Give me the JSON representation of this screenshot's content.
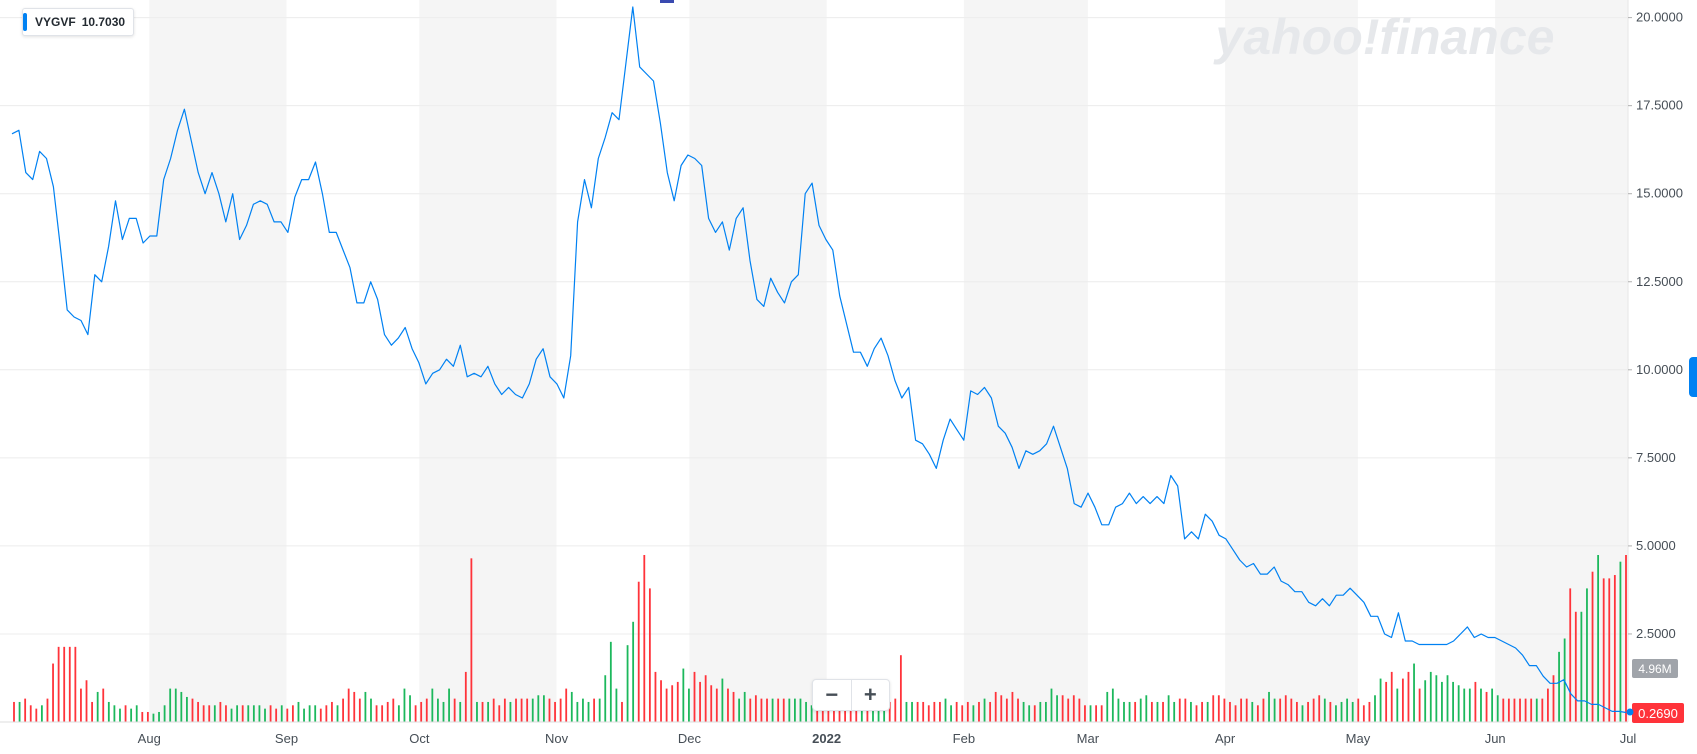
{
  "symbol": {
    "ticker": "VYGVF",
    "price": "10.7030"
  },
  "watermark": "yahoo!finance",
  "volume_label": "4.96M",
  "last_price_label": "0.2690",
  "zoom": {
    "minus": "−",
    "plus": "+"
  },
  "colors": {
    "line": "#0081f2",
    "volume_up": "#1cb85c",
    "volume_down": "#ff333a",
    "band": "#f5f5f5",
    "price_badge": "#ff333a",
    "volume_badge": "#a0a4aa"
  },
  "chart_data": {
    "type": "line",
    "title": "",
    "xlabel": "",
    "ylabel": "",
    "ylim": [
      0,
      20.5
    ],
    "y_ticks": [
      "20.0000",
      "17.5000",
      "15.0000",
      "12.5000",
      "10.0000",
      "7.5000",
      "5.0000",
      "2.5000"
    ],
    "y_tick_values": [
      20,
      17.5,
      15,
      12.5,
      10,
      7.5,
      5,
      2.5
    ],
    "x_ticks": [
      "Aug",
      "Sep",
      "Oct",
      "Nov",
      "Dec",
      "2022",
      "Feb",
      "Mar",
      "Apr",
      "May",
      "Jun",
      "Jul"
    ],
    "x_range": [
      "2021-07-01",
      "2022-07-01"
    ],
    "x_tick_dates": [
      "2021-08-01",
      "2021-09-01",
      "2021-10-01",
      "2021-11-01",
      "2021-12-01",
      "2022-01-01",
      "2022-02-01",
      "2022-03-01",
      "2022-04-01",
      "2022-05-01",
      "2022-06-01",
      "2022-07-01"
    ],
    "series": [
      {
        "values": [
          16.7,
          16.8,
          15.6,
          15.4,
          16.2,
          16.0,
          15.2,
          13.5,
          11.7,
          11.5,
          11.4,
          11.0,
          12.7,
          12.5,
          13.5,
          14.8,
          13.7,
          14.3,
          14.3,
          13.6,
          13.8,
          13.8,
          15.4,
          16.0,
          16.8,
          17.4,
          16.5,
          15.6,
          15.0,
          15.6,
          15.0,
          14.2,
          15.0,
          13.7,
          14.1,
          14.7,
          14.8,
          14.7,
          14.2,
          14.2,
          13.9,
          14.9,
          15.4,
          15.4,
          15.9,
          15.0,
          13.9,
          13.9,
          13.4,
          12.9,
          11.9,
          11.9,
          12.5,
          12.0,
          11.0,
          10.7,
          10.9,
          11.2,
          10.6,
          10.2,
          9.6,
          9.9,
          10.0,
          10.3,
          10.1,
          10.7,
          9.8,
          9.9,
          9.8,
          10.1,
          9.6,
          9.3,
          9.5,
          9.3,
          9.2,
          9.6,
          10.3,
          10.6,
          9.8,
          9.6,
          9.2,
          10.4,
          14.2,
          15.4,
          14.6,
          16.0,
          16.6,
          17.3,
          17.1,
          18.7,
          20.3,
          18.6,
          18.4,
          18.2,
          17.0,
          15.6,
          14.8,
          15.8,
          16.1,
          16.0,
          15.8,
          14.3,
          13.9,
          14.2,
          13.4,
          14.3,
          14.6,
          13.1,
          12.0,
          11.8,
          12.6,
          12.2,
          11.9,
          12.5,
          12.7,
          15.0,
          15.3,
          14.1,
          13.7,
          13.4,
          12.1,
          11.3,
          10.5,
          10.5,
          10.1,
          10.6,
          10.9,
          10.4,
          9.7,
          9.2,
          9.5,
          8.0,
          7.9,
          7.6,
          7.2,
          8.0,
          8.6,
          8.3,
          8.0,
          9.4,
          9.3,
          9.5,
          9.2,
          8.4,
          8.2,
          7.8,
          7.2,
          7.7,
          7.6,
          7.7,
          7.9,
          8.4,
          7.8,
          7.2,
          6.2,
          6.1,
          6.5,
          6.1,
          5.6,
          5.6,
          6.1,
          6.2,
          6.5,
          6.2,
          6.4,
          6.2,
          6.4,
          6.2,
          7.0,
          6.7,
          5.2,
          5.4,
          5.2,
          5.9,
          5.7,
          5.3,
          5.2,
          4.9,
          4.6,
          4.4,
          4.5,
          4.2,
          4.2,
          4.4,
          4.0,
          3.9,
          3.7,
          3.7,
          3.4,
          3.3,
          3.5,
          3.3,
          3.6,
          3.6,
          3.8,
          3.6,
          3.4,
          3.0,
          3.0,
          2.5,
          2.4,
          3.1,
          2.3,
          2.3,
          2.2,
          2.2,
          2.2,
          2.2,
          2.2,
          2.3,
          2.5,
          2.7,
          2.4,
          2.5,
          2.4,
          2.4,
          2.3,
          2.2,
          2.1,
          1.9,
          1.6,
          1.6,
          1.3,
          1.1,
          1.1,
          1.2,
          0.8,
          0.6,
          0.6,
          0.5,
          0.5,
          0.4,
          0.3,
          0.3,
          0.27
        ]
      }
    ],
    "volume": {
      "values": [
        0.12,
        0.12,
        0.14,
        0.1,
        0.08,
        0.1,
        0.14,
        0.35,
        0.45,
        0.45,
        0.45,
        0.45,
        0.2,
        0.25,
        0.12,
        0.18,
        0.2,
        0.12,
        0.1,
        0.08,
        0.1,
        0.08,
        0.1,
        0.06,
        0.06,
        0.05,
        0.06,
        0.1,
        0.2,
        0.2,
        0.18,
        0.15,
        0.14,
        0.12,
        0.1,
        0.1,
        0.1,
        0.12,
        0.1,
        0.08,
        0.1,
        0.1,
        0.1,
        0.1,
        0.1,
        0.08,
        0.1,
        0.08,
        0.1,
        0.08,
        0.1,
        0.12,
        0.08,
        0.1,
        0.1,
        0.08,
        0.1,
        0.12,
        0.1,
        0.14,
        0.2,
        0.18,
        0.14,
        0.18,
        0.14,
        0.1,
        0.1,
        0.12,
        0.14,
        0.1,
        0.2,
        0.16,
        0.1,
        0.12,
        0.14,
        0.2,
        0.14,
        0.12,
        0.2,
        0.14,
        0.12,
        0.3,
        0.98,
        0.12,
        0.12,
        0.12,
        0.14,
        0.1,
        0.14,
        0.12,
        0.14,
        0.14,
        0.14,
        0.14,
        0.16,
        0.16,
        0.14,
        0.12,
        0.14,
        0.2,
        0.18,
        0.12,
        0.14,
        0.12,
        0.14,
        0.14,
        0.28,
        0.48,
        0.2,
        0.12,
        0.46,
        0.6,
        0.84,
        1.0,
        0.8,
        0.3,
        0.25,
        0.2,
        0.22,
        0.24,
        0.32,
        0.2,
        0.3,
        0.24,
        0.28,
        0.22,
        0.2,
        0.26,
        0.2,
        0.18,
        0.14,
        0.18,
        0.14,
        0.16,
        0.14,
        0.14,
        0.14,
        0.14,
        0.14,
        0.14,
        0.14,
        0.14,
        0.12,
        0.1,
        0.1,
        0.1,
        0.1,
        0.1,
        0.1,
        0.1,
        0.2,
        0.18,
        0.16,
        0.14,
        0.14,
        0.2,
        0.14,
        0.12,
        0.14,
        0.4,
        0.12,
        0.12,
        0.12,
        0.12,
        0.1,
        0.12,
        0.12,
        0.14,
        0.1,
        0.12,
        0.1,
        0.12,
        0.1,
        0.12,
        0.14,
        0.12,
        0.18,
        0.16,
        0.14,
        0.18,
        0.14,
        0.12,
        0.1,
        0.1,
        0.12,
        0.12,
        0.2,
        0.16,
        0.16,
        0.14,
        0.16,
        0.14,
        0.1,
        0.1,
        0.1,
        0.1,
        0.18,
        0.2,
        0.14,
        0.12,
        0.12,
        0.12,
        0.14,
        0.16,
        0.12,
        0.12,
        0.12,
        0.16,
        0.12,
        0.14,
        0.14,
        0.12,
        0.1,
        0.12,
        0.12,
        0.16,
        0.16,
        0.14,
        0.12,
        0.1,
        0.14,
        0.14,
        0.12,
        0.1,
        0.14,
        0.18,
        0.14,
        0.14,
        0.16,
        0.14,
        0.12,
        0.1,
        0.12,
        0.14,
        0.16,
        0.14,
        0.12,
        0.1,
        0.12,
        0.14,
        0.12,
        0.14,
        0.1,
        0.12,
        0.16,
        0.26,
        0.24,
        0.3,
        0.2,
        0.26,
        0.3,
        0.35,
        0.2,
        0.25,
        0.3,
        0.28,
        0.24,
        0.28,
        0.24,
        0.22,
        0.2,
        0.2,
        0.24,
        0.2,
        0.18,
        0.2,
        0.16,
        0.14,
        0.14,
        0.14,
        0.14,
        0.14,
        0.14,
        0.14,
        0.14,
        0.2,
        0.28,
        0.42,
        0.5,
        0.8,
        0.66,
        0.66,
        0.8,
        0.9,
        1.0,
        0.86,
        0.86,
        0.88,
        0.96,
        1.0
      ],
      "peak_label": "4.96M"
    }
  }
}
